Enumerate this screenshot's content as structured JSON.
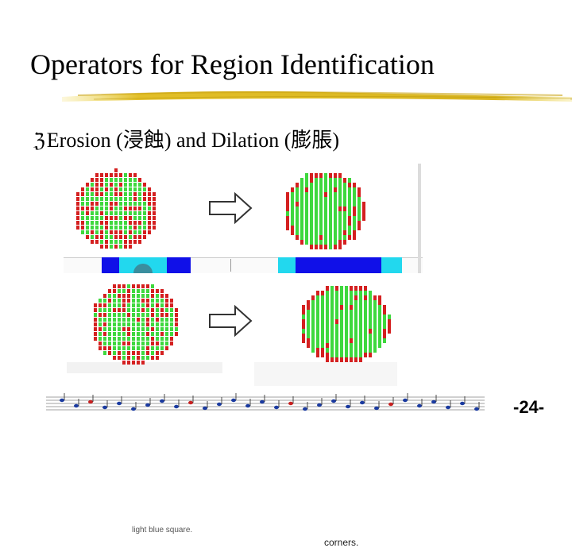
{
  "slide": {
    "title": "Operators for Region Identification",
    "bullet": {
      "icon": "z-bullet-icon",
      "text": "Erosion (浸蝕) and Dilation (膨脹)"
    },
    "figure": {
      "caption_left": "light blue square.",
      "caption_right": "corners."
    },
    "page_number": "-24-"
  },
  "colors": {
    "red": "#d42020",
    "green": "#3ed83e",
    "blue": "#1010e8",
    "cyan": "#22d8ee",
    "brush": "#e8c830"
  }
}
